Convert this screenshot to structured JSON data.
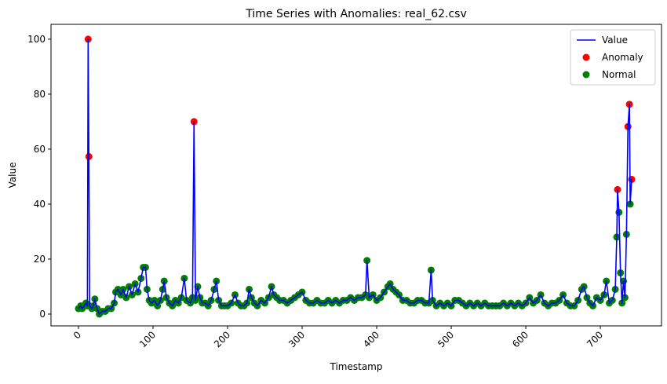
{
  "chart_data": {
    "type": "line",
    "title": "Time Series with Anomalies: real_62.csv",
    "x_label": "Timestamp",
    "y_label": "Value",
    "xlim": [
      -36.8,
      782
    ],
    "xticks": [
      0,
      100,
      200,
      300,
      400,
      500,
      600,
      700
    ],
    "ylim": [
      -4.3,
      105.4
    ],
    "yticks": [
      0,
      20,
      40,
      60,
      80,
      100
    ],
    "legend": "upper right",
    "x": [
      0,
      3,
      5,
      8,
      10,
      12,
      13,
      14,
      15,
      18,
      20,
      22,
      25,
      28,
      32,
      36,
      40,
      44,
      48,
      50,
      53,
      57,
      60,
      64,
      68,
      72,
      76,
      80,
      84,
      87,
      90,
      92,
      95,
      98,
      102,
      106,
      110,
      113,
      115,
      118,
      122,
      126,
      130,
      134,
      138,
      142,
      145,
      150,
      153,
      155,
      157,
      160,
      163,
      166,
      170,
      174,
      178,
      182,
      185,
      188,
      192,
      196,
      200,
      205,
      210,
      214,
      218,
      222,
      226,
      229,
      232,
      236,
      240,
      245,
      250,
      255,
      259,
      262,
      266,
      270,
      275,
      280,
      285,
      290,
      295,
      300,
      305,
      310,
      315,
      320,
      325,
      330,
      335,
      340,
      345,
      350,
      355,
      360,
      365,
      370,
      375,
      380,
      385,
      387,
      390,
      395,
      400,
      405,
      410,
      415,
      418,
      422,
      426,
      430,
      435,
      440,
      445,
      450,
      455,
      460,
      465,
      470,
      473,
      475,
      480,
      485,
      490,
      495,
      500,
      505,
      510,
      515,
      520,
      525,
      530,
      535,
      540,
      545,
      550,
      555,
      560,
      565,
      570,
      575,
      580,
      585,
      590,
      595,
      600,
      605,
      610,
      615,
      620,
      625,
      630,
      635,
      640,
      645,
      650,
      655,
      660,
      665,
      670,
      675,
      678,
      682,
      686,
      690,
      695,
      700,
      705,
      708,
      712,
      716,
      720,
      722,
      723,
      725,
      727,
      729,
      731,
      733,
      735,
      737,
      739,
      740,
      742
    ],
    "series": [
      {
        "name": "Value",
        "kind": "line",
        "color": "blue",
        "values": [
          2,
          3,
          2,
          3,
          4,
          3,
          100,
          57.3,
          3,
          2,
          3,
          5.5,
          2,
          0,
          1,
          1,
          2,
          2,
          4,
          8,
          9,
          7,
          9,
          6,
          10,
          7,
          11,
          8,
          13,
          17,
          17,
          9,
          5,
          4,
          5,
          3,
          5,
          9,
          12,
          6,
          4,
          3,
          5,
          4,
          6,
          13,
          5,
          4,
          6,
          70,
          5,
          10,
          6,
          4,
          4,
          3,
          5,
          9,
          12,
          5,
          3,
          3,
          3,
          4,
          7,
          4,
          3,
          3,
          4,
          9,
          6,
          4,
          3,
          5,
          4,
          6,
          10,
          7,
          6,
          5,
          5,
          4,
          5,
          6,
          7,
          8,
          5,
          4,
          4,
          5,
          4,
          4,
          5,
          4,
          5,
          4,
          5,
          5,
          6,
          5,
          6,
          6,
          7,
          19.5,
          6,
          7,
          5,
          6,
          8,
          10,
          11,
          9,
          8,
          7,
          5,
          5,
          4,
          4,
          5,
          5,
          4,
          4,
          16,
          5,
          3,
          4,
          3,
          4,
          3,
          5,
          5,
          4,
          3,
          4,
          3,
          4,
          3,
          4,
          3,
          3,
          3,
          3,
          4,
          3,
          4,
          3,
          4,
          3,
          4,
          6,
          4,
          5,
          7,
          4,
          3,
          4,
          4,
          5,
          7,
          4,
          3,
          3,
          5,
          9,
          10,
          6,
          4,
          3,
          6,
          5,
          7,
          12,
          4,
          5,
          9,
          28,
          45.3,
          37,
          15,
          4,
          12,
          6,
          29,
          68.2,
          76.3,
          40,
          49
        ]
      },
      {
        "name": "Anomaly",
        "kind": "scatter",
        "color": "red",
        "x": [
          13,
          14,
          155,
          723,
          737,
          739,
          742
        ],
        "values": [
          100,
          57.3,
          70,
          45.3,
          68.2,
          76.3,
          49
        ]
      },
      {
        "name": "Normal",
        "kind": "scatter",
        "color": "green",
        "values": [
          2,
          3,
          2,
          3,
          4,
          3,
          null,
          null,
          3,
          2,
          3,
          5.5,
          2,
          0,
          1,
          1,
          2,
          2,
          4,
          8,
          9,
          7,
          9,
          6,
          10,
          7,
          11,
          8,
          13,
          17,
          17,
          9,
          5,
          4,
          5,
          3,
          5,
          9,
          12,
          6,
          4,
          3,
          5,
          4,
          6,
          13,
          5,
          4,
          6,
          null,
          5,
          10,
          6,
          4,
          4,
          3,
          5,
          9,
          12,
          5,
          3,
          3,
          3,
          4,
          7,
          4,
          3,
          3,
          4,
          9,
          6,
          4,
          3,
          5,
          4,
          6,
          10,
          7,
          6,
          5,
          5,
          4,
          5,
          6,
          7,
          8,
          5,
          4,
          4,
          5,
          4,
          4,
          5,
          4,
          5,
          4,
          5,
          5,
          6,
          5,
          6,
          6,
          7,
          19.5,
          6,
          7,
          5,
          6,
          8,
          10,
          11,
          9,
          8,
          7,
          5,
          5,
          4,
          4,
          5,
          5,
          4,
          4,
          16,
          5,
          3,
          4,
          3,
          4,
          3,
          5,
          5,
          4,
          3,
          4,
          3,
          4,
          3,
          4,
          3,
          3,
          3,
          3,
          4,
          3,
          4,
          3,
          4,
          3,
          4,
          6,
          4,
          5,
          7,
          4,
          3,
          4,
          4,
          5,
          7,
          4,
          3,
          3,
          5,
          9,
          10,
          6,
          4,
          3,
          6,
          5,
          7,
          12,
          4,
          5,
          9,
          28,
          null,
          37,
          15,
          4,
          12,
          6,
          29,
          null,
          null,
          40,
          null
        ]
      }
    ]
  }
}
